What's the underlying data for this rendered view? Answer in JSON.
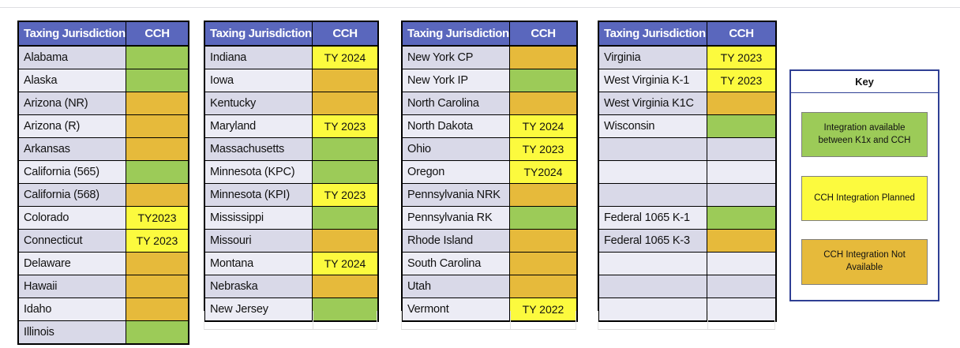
{
  "colors": {
    "header_bg": "#5A67BD",
    "header_text": "#FFFFFF",
    "green": "#9CCB58",
    "yellow": "#FCFA3E",
    "orange": "#E6BA3B",
    "row_dark": "#D9D9E8",
    "row_light": "#ECECF5",
    "key_border": "#2F3F94"
  },
  "tables": [
    {
      "headers": [
        "Taxing Jurisdiction",
        "CCH"
      ],
      "rows": [
        {
          "label": "Alabama",
          "status": "green",
          "value": ""
        },
        {
          "label": "Alaska",
          "status": "green",
          "value": ""
        },
        {
          "label": "Arizona (NR)",
          "status": "orange",
          "value": ""
        },
        {
          "label": "Arizona (R)",
          "status": "orange",
          "value": ""
        },
        {
          "label": "Arkansas",
          "status": "orange",
          "value": ""
        },
        {
          "label": "California (565)",
          "status": "green",
          "value": ""
        },
        {
          "label": "California (568)",
          "status": "orange",
          "value": ""
        },
        {
          "label": "Colorado",
          "status": "yellow",
          "value": "TY2023"
        },
        {
          "label": "Connecticut",
          "status": "yellow",
          "value": "TY 2023"
        },
        {
          "label": "Delaware",
          "status": "orange",
          "value": ""
        },
        {
          "label": "Hawaii",
          "status": "orange",
          "value": ""
        },
        {
          "label": "Idaho",
          "status": "orange",
          "value": ""
        },
        {
          "label": "Illinois",
          "status": "green",
          "value": ""
        }
      ]
    },
    {
      "headers": [
        "Taxing Jurisdiction",
        "CCH"
      ],
      "rows": [
        {
          "label": "Indiana",
          "status": "yellow",
          "value": "TY 2024"
        },
        {
          "label": "Iowa",
          "status": "orange",
          "value": ""
        },
        {
          "label": "Kentucky",
          "status": "orange",
          "value": ""
        },
        {
          "label": "Maryland",
          "status": "yellow",
          "value": "TY 2023"
        },
        {
          "label": "Massachusetts",
          "status": "green",
          "value": ""
        },
        {
          "label": "Minnesota (KPC)",
          "status": "green",
          "value": ""
        },
        {
          "label": "Minnesota (KPI)",
          "status": "yellow",
          "value": "TY 2023"
        },
        {
          "label": "Mississippi",
          "status": "green",
          "value": ""
        },
        {
          "label": "Missouri",
          "status": "orange",
          "value": ""
        },
        {
          "label": "Montana",
          "status": "yellow",
          "value": "TY 2024"
        },
        {
          "label": "Nebraska",
          "status": "orange",
          "value": ""
        },
        {
          "label": "New Jersey",
          "status": "green",
          "value": ""
        }
      ]
    },
    {
      "headers": [
        "Taxing Jurisdiction",
        "CCH"
      ],
      "rows": [
        {
          "label": "New York CP",
          "status": "orange",
          "value": ""
        },
        {
          "label": "New York IP",
          "status": "green",
          "value": ""
        },
        {
          "label": "North Carolina",
          "status": "orange",
          "value": ""
        },
        {
          "label": "North Dakota",
          "status": "yellow",
          "value": "TY 2024"
        },
        {
          "label": "Ohio",
          "status": "yellow",
          "value": "TY 2023"
        },
        {
          "label": "Oregon",
          "status": "yellow",
          "value": "TY2024"
        },
        {
          "label": "Pennsylvania NRK",
          "status": "orange",
          "value": ""
        },
        {
          "label": "Pennsylvania RK",
          "status": "green",
          "value": ""
        },
        {
          "label": "Rhode Island",
          "status": "orange",
          "value": ""
        },
        {
          "label": "South Carolina",
          "status": "orange",
          "value": ""
        },
        {
          "label": "Utah",
          "status": "orange",
          "value": ""
        },
        {
          "label": "Vermont",
          "status": "yellow",
          "value": "TY 2022"
        }
      ]
    },
    {
      "headers": [
        "Taxing Jurisdiction",
        "CCH"
      ],
      "rows": [
        {
          "label": "Virginia",
          "status": "yellow",
          "value": "TY 2023"
        },
        {
          "label": "West Virginia K-1",
          "status": "yellow",
          "value": "TY 2023"
        },
        {
          "label": "West Virginia K1C",
          "status": "orange",
          "value": ""
        },
        {
          "label": "Wisconsin",
          "status": "green",
          "value": ""
        },
        {
          "label": "",
          "status": "none",
          "value": ""
        },
        {
          "label": "",
          "status": "none",
          "value": ""
        },
        {
          "label": "",
          "status": "none",
          "value": ""
        },
        {
          "label": "Federal 1065 K-1",
          "status": "green",
          "value": ""
        },
        {
          "label": "Federal 1065 K-3",
          "status": "orange",
          "value": ""
        },
        {
          "label": "",
          "status": "none",
          "value": ""
        },
        {
          "label": "",
          "status": "none",
          "value": ""
        },
        {
          "label": "",
          "status": "none",
          "value": ""
        }
      ]
    }
  ],
  "key": {
    "title": "Key",
    "items": [
      {
        "status": "green",
        "label": "Integration available between K1x and CCH"
      },
      {
        "status": "yellow",
        "label": "CCH Integration Planned"
      },
      {
        "status": "orange",
        "label": "CCH Integration Not Available"
      }
    ]
  }
}
